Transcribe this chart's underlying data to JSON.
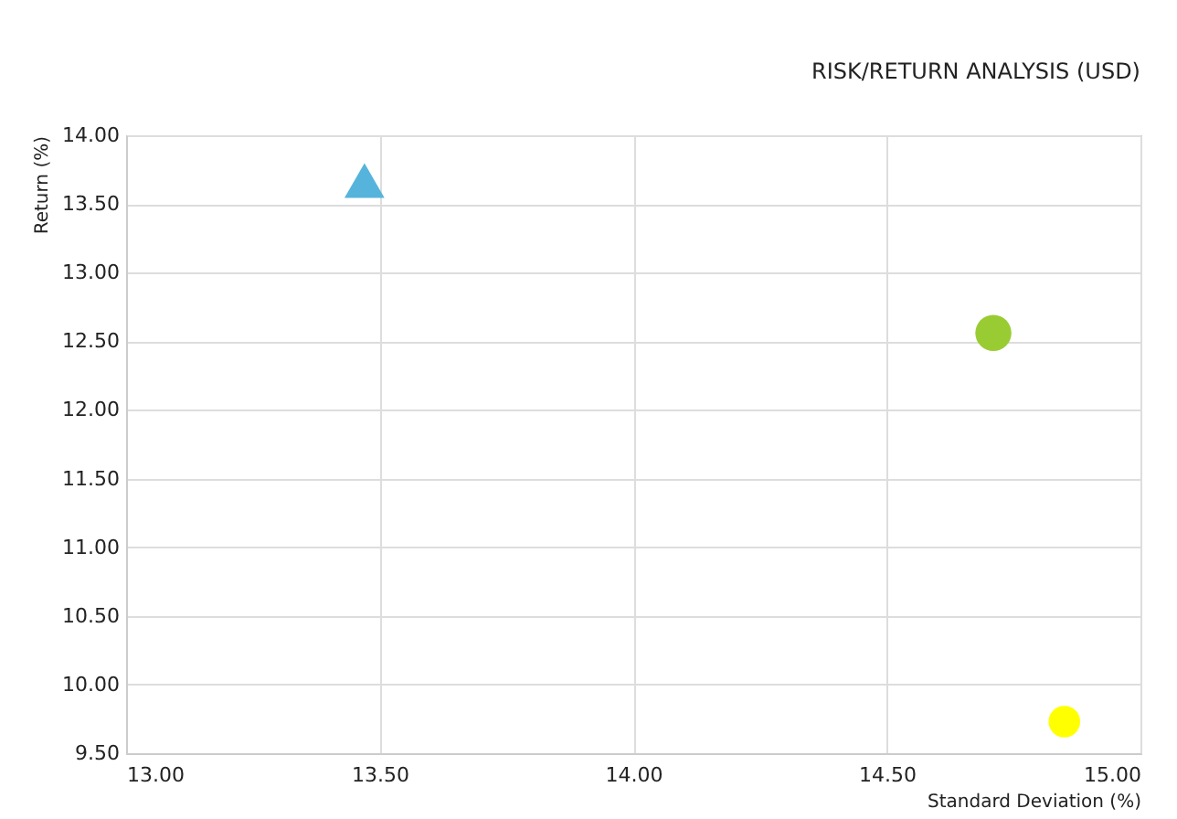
{
  "chart_data": {
    "type": "scatter",
    "title": "RISK/RETURN ANALYSIS (USD)",
    "xlabel": "Standard Deviation (%)",
    "ylabel": "Return (%)",
    "series": [
      {
        "color": "#56b4dc",
        "marker": "triangle",
        "x": [
          13.47
        ],
        "values": [
          13.67
        ]
      },
      {
        "color": "#99cc33",
        "marker": "circle",
        "x": [
          14.71
        ],
        "values": [
          12.56
        ]
      },
      {
        "color": "#ffff00",
        "marker": "circle",
        "x": [
          14.85
        ],
        "values": [
          9.73
        ]
      }
    ],
    "xlim": [
      13,
      15
    ],
    "xticks": [
      {
        "value": 13,
        "label": "13.00"
      },
      {
        "value": 13.5,
        "label": "13.50"
      },
      {
        "value": 14,
        "label": "14.00"
      },
      {
        "value": 14.5,
        "label": "14.50"
      },
      {
        "value": 15,
        "label": "15.00"
      }
    ],
    "ylim": [
      9.5,
      14
    ],
    "yticks": [
      {
        "value": 9.5,
        "label": "9.50"
      },
      {
        "value": 10,
        "label": "10.00"
      },
      {
        "value": 10.5,
        "label": "10.50"
      },
      {
        "value": 11,
        "label": "11.00"
      },
      {
        "value": 11.5,
        "label": "11.50"
      },
      {
        "value": 12,
        "label": "12.00"
      },
      {
        "value": 12.5,
        "label": "12.50"
      },
      {
        "value": 13,
        "label": "13.00"
      },
      {
        "value": 13.5,
        "label": "13.50"
      },
      {
        "value": 14,
        "label": "14.00"
      }
    ],
    "grid": true
  }
}
